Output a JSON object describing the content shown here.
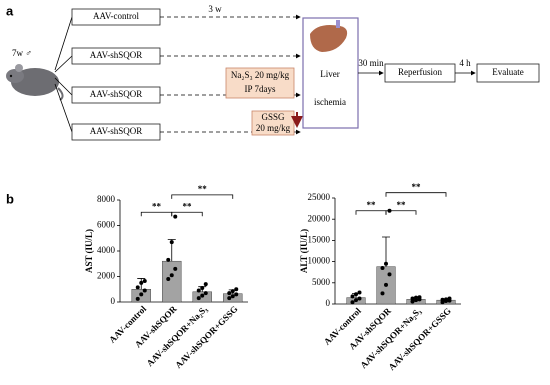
{
  "panel_labels": [
    "a",
    "b"
  ],
  "diagram": {
    "mouse_label": "7w ♂",
    "groups": [
      "AAV-control",
      "AAV-shSQOR",
      "AAV-shSQOR",
      "AAV-shSQOR"
    ],
    "duration": "3 w",
    "treatments": [
      [
        "Na₂S₃  20 mg/kg",
        "IP 7days"
      ],
      [
        "GSSG",
        "20 mg/kg"
      ]
    ],
    "liver": [
      "Liver",
      "ischemia"
    ],
    "steps": [
      "Reperfusion",
      "Evaluate"
    ],
    "intervals": [
      "30 min",
      "4 h"
    ]
  },
  "chart_data": [
    {
      "type": "bar",
      "ylabel": "AST (IU/L)",
      "categories": [
        "AAV-control",
        "AAV-shSQOR",
        "AAV-shSQOR+Na₂S₃",
        "AAV-shSQOR+GSSG"
      ],
      "values": [
        1000,
        3200,
        800,
        650
      ],
      "errors": [
        850,
        1700,
        400,
        300
      ],
      "points": [
        [
          250,
          600,
          900,
          1150,
          1500,
          1650
        ],
        [
          1800,
          2100,
          2600,
          3300,
          4700,
          6700
        ],
        [
          300,
          500,
          700,
          900,
          1100,
          1400
        ],
        [
          300,
          450,
          600,
          700,
          850,
          1000
        ]
      ],
      "color": "#a3a3a3",
      "ylim": [
        0,
        8000
      ],
      "yticks": [
        0,
        2000,
        4000,
        6000,
        8000
      ],
      "annotations": [
        "**",
        "**",
        "**"
      ]
    },
    {
      "type": "bar",
      "ylabel": "ALT (IU/L)",
      "categories": [
        "AAV-control",
        "AAV-shSQOR",
        "AAV-shSQOR+Na₂S₃",
        "AAV-shSQOR+GSSG"
      ],
      "values": [
        1500,
        8800,
        1100,
        900
      ],
      "errors": [
        1000,
        7000,
        400,
        300
      ],
      "points": [
        [
          400,
          900,
          1300,
          1800,
          2300,
          2700
        ],
        [
          2500,
          4500,
          7000,
          8500,
          9500,
          22000
        ],
        [
          600,
          900,
          1100,
          1300,
          1500,
          1600
        ],
        [
          400,
          700,
          800,
          1000,
          1100,
          1300
        ]
      ],
      "color": "#a3a3a3",
      "ylim": [
        0,
        25000
      ],
      "yticks": [
        0,
        5000,
        10000,
        15000,
        20000,
        25000
      ],
      "annotations": [
        "**",
        "**",
        "**"
      ]
    }
  ]
}
